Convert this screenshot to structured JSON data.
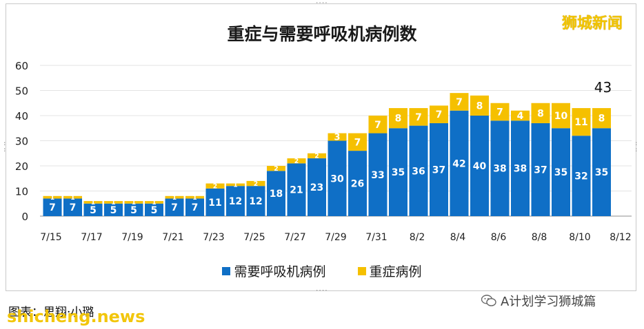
{
  "title": "重症与需要呼吸机病例数",
  "logo_text": "狮城新闻",
  "caption": "图表：思翔·小璐",
  "watermark": "shicheng.news",
  "wechat_label": "A计划学习狮城篇",
  "legend": [
    {
      "label": "需要呼吸机病例",
      "color": "#0f6fc6"
    },
    {
      "label": "重症病例",
      "color": "#f5c000"
    }
  ],
  "chart_data": {
    "type": "bar",
    "stacked": true,
    "title": "重症与需要呼吸机病例数",
    "ylim": [
      0,
      60
    ],
    "yticks": [
      0,
      10,
      20,
      30,
      40,
      50,
      60
    ],
    "grid": true,
    "legend_position": "bottom",
    "categories": [
      "7/15",
      "7/16",
      "7/17",
      "7/18",
      "7/19",
      "7/20",
      "7/21",
      "7/22",
      "7/23",
      "7/24",
      "7/25",
      "7/26",
      "7/27",
      "7/28",
      "7/29",
      "7/30",
      "7/31",
      "8/1",
      "8/2",
      "8/3",
      "8/4",
      "8/5",
      "8/6",
      "8/7",
      "8/8",
      "8/9",
      "8/10",
      "8/11"
    ],
    "xtick_labels": [
      "7/15",
      "7/17",
      "7/19",
      "7/21",
      "7/23",
      "7/25",
      "7/27",
      "7/29",
      "7/31",
      "8/2",
      "8/4",
      "8/6",
      "8/8",
      "8/10",
      "8/12"
    ],
    "series": [
      {
        "name": "需要呼吸机病例",
        "color": "#0f6fc6",
        "values": [
          7,
          7,
          5,
          5,
          5,
          5,
          7,
          7,
          11,
          12,
          12,
          18,
          21,
          23,
          30,
          26,
          33,
          35,
          36,
          37,
          42,
          40,
          38,
          38,
          37,
          35,
          32,
          35
        ]
      },
      {
        "name": "重症病例",
        "color": "#f5c000",
        "values": [
          1,
          1,
          1,
          1,
          1,
          1,
          1,
          1,
          2,
          1,
          2,
          2,
          2,
          2,
          3,
          7,
          7,
          8,
          7,
          7,
          7,
          8,
          7,
          4,
          8,
          10,
          11,
          8
        ]
      }
    ],
    "annotation": {
      "text": "43"
    }
  }
}
